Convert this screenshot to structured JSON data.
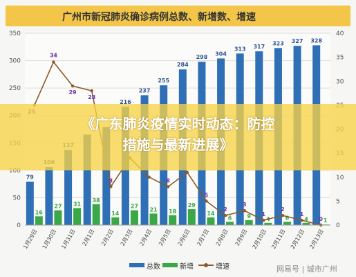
{
  "page": {
    "title": "广州市新冠肺炎确诊病例总数、新增数、增速",
    "overlay_title": "《广东肺炎疫情实时动态：防控措施与最新进展》",
    "watermark": "网易号 | 城市广州"
  },
  "colors": {
    "title_bg": "#f3c64a",
    "total": "#2f6fb6",
    "new": "#3aa847",
    "growth": "#8b5a2b",
    "overlay": "#f7d447",
    "label_total": "#2f5597",
    "label_new": "#3aa847",
    "label_growth": "#7030a0"
  },
  "chart_data": {
    "type": "bar",
    "title": "广州市新冠肺炎确诊病例总数、新增数、增速",
    "categories": [
      "1月29日",
      "1月30日",
      "1月31日",
      "2月1日",
      "2月2日",
      "2月3日",
      "2月4日",
      "2月5日",
      "2月6日",
      "2月7日",
      "2月8日",
      "2月9日",
      "2月10日",
      "2月11日",
      "2月12日",
      "2月13日"
    ],
    "left_ylim": [
      0,
      350
    ],
    "left_yticks": [
      0,
      50,
      100,
      150,
      200,
      250,
      300,
      350
    ],
    "right_ylim": [
      0,
      40
    ],
    "right_yticks": [
      0,
      5,
      10,
      15,
      20,
      25,
      30,
      35,
      40
    ],
    "grid": true,
    "legend_position": "bottom",
    "series": [
      {
        "name": "总数",
        "kind": "bar",
        "axis": "left",
        "values": [
          79,
          106,
          137,
          165,
          179,
          216,
          237,
          255,
          284,
          298,
          304,
          313,
          317,
          323,
          327,
          328
        ]
      },
      {
        "name": "新增",
        "kind": "bar",
        "axis": "left",
        "values": [
          16,
          27,
          31,
          38,
          14,
          27,
          21,
          18,
          29,
          14,
          6,
          9,
          4,
          6,
          4,
          1
        ]
      },
      {
        "name": "增速",
        "kind": "line",
        "axis": "right",
        "values": [
          25,
          34,
          29,
          28,
          8,
          14,
          10,
          8,
          11,
          5,
          2,
          3,
          1,
          2,
          1,
          0
        ]
      }
    ],
    "growth_labels_visible": [
      25,
      34,
      29,
      28,
      8,
      null,
      null,
      8,
      null,
      5,
      2,
      3,
      1,
      2,
      1,
      0
    ],
    "total_labels_visible": [
      79,
      106,
      137,
      null,
      null,
      216,
      237,
      255,
      284,
      298,
      304,
      313,
      317,
      323,
      327,
      328
    ]
  },
  "legend": {
    "total": "总数",
    "new": "新增",
    "growth": "增速"
  }
}
